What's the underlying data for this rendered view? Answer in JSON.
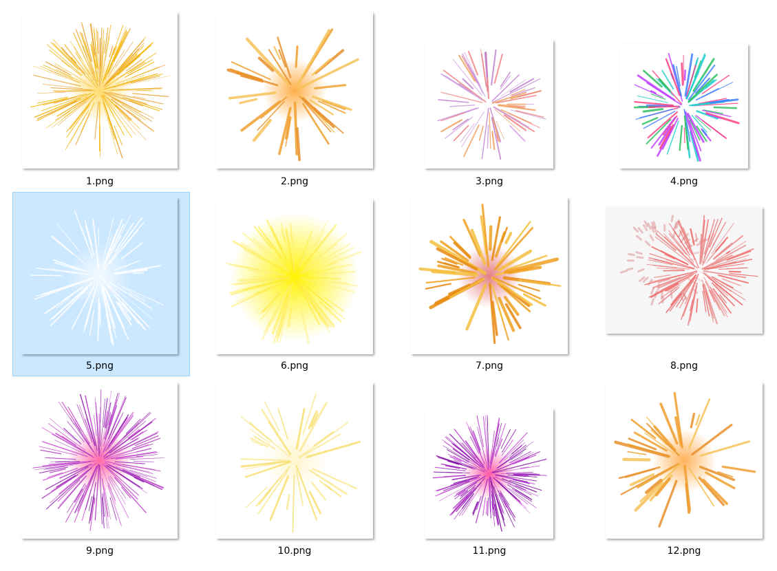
{
  "files": [
    {
      "name": "1.png"
    },
    {
      "name": "2.png"
    },
    {
      "name": "3.png"
    },
    {
      "name": "4.png"
    },
    {
      "name": "5.png",
      "selected": true
    },
    {
      "name": "6.png"
    },
    {
      "name": "7.png"
    },
    {
      "name": "8.png"
    },
    {
      "name": "9.png"
    },
    {
      "name": "10.png"
    },
    {
      "name": "11.png"
    },
    {
      "name": "12.png"
    }
  ]
}
